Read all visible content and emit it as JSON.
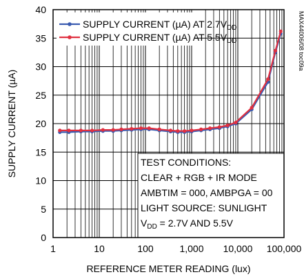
{
  "chart_data": {
    "type": "line",
    "xscale": "log",
    "xlim": [
      1,
      100000
    ],
    "ylim": [
      0,
      40
    ],
    "grid": true,
    "xlabel": "REFERENCE METER READING (lux)",
    "ylabel": "SUPPLY CURRENT (µA)",
    "x_ticks": [
      {
        "value": 1,
        "label": "1"
      },
      {
        "value": 10,
        "label": "10"
      },
      {
        "value": 100,
        "label": "100"
      },
      {
        "value": 1000,
        "label": "1,000"
      },
      {
        "value": 10000,
        "label": "10,000"
      },
      {
        "value": 100000,
        "label": "100,000"
      }
    ],
    "y_ticks": [
      0,
      5,
      10,
      15,
      20,
      25,
      30,
      35,
      40
    ],
    "legend_position": "top-left",
    "series": [
      {
        "name_main": "SUPPLY CURRENT (µA) AT 2.7V",
        "name_sub": "DD",
        "color": "#3a5bb0",
        "x": [
          1.4,
          2.2,
          4,
          7,
          12,
          20,
          30,
          50,
          80,
          120,
          200,
          350,
          500,
          700,
          1000,
          1600,
          2500,
          4000,
          6000,
          9000,
          20000,
          45000,
          65000,
          85000
        ],
        "y": [
          18.5,
          18.5,
          18.6,
          18.6,
          18.7,
          18.7,
          18.8,
          18.9,
          19.0,
          19.0,
          18.8,
          18.6,
          18.5,
          18.5,
          18.6,
          18.8,
          19.0,
          19.2,
          19.5,
          20.0,
          22.5,
          27.3,
          32.5,
          35.8
        ]
      },
      {
        "name_main": "SUPPLY CURRENT (µA) AT 5.5V",
        "name_sub": "DD",
        "color": "#e03040",
        "x": [
          1.4,
          2.2,
          4,
          7,
          12,
          20,
          30,
          50,
          80,
          120,
          200,
          350,
          500,
          700,
          1000,
          1600,
          2500,
          4000,
          6000,
          9000,
          20000,
          45000,
          65000,
          85000
        ],
        "y": [
          18.8,
          18.8,
          18.8,
          18.8,
          18.9,
          18.9,
          19.0,
          19.1,
          19.2,
          19.2,
          19.0,
          18.8,
          18.7,
          18.7,
          18.8,
          19.0,
          19.2,
          19.4,
          19.7,
          20.2,
          22.8,
          27.8,
          32.8,
          36.2
        ]
      }
    ],
    "annotation": {
      "lines": [
        "TEST CONDITIONS:",
        "CLEAR + RGB + IR MODE",
        "AMBTIM = 000, AMBPGA = 00",
        "LIGHT SOURCE: SUNLIGHT"
      ],
      "last_line_prefix": "V",
      "last_line_sub": "DD",
      "last_line_suffix": " = 2.7V AND 5.5V"
    },
    "side_label": "MAX44006/08 toc09a"
  }
}
